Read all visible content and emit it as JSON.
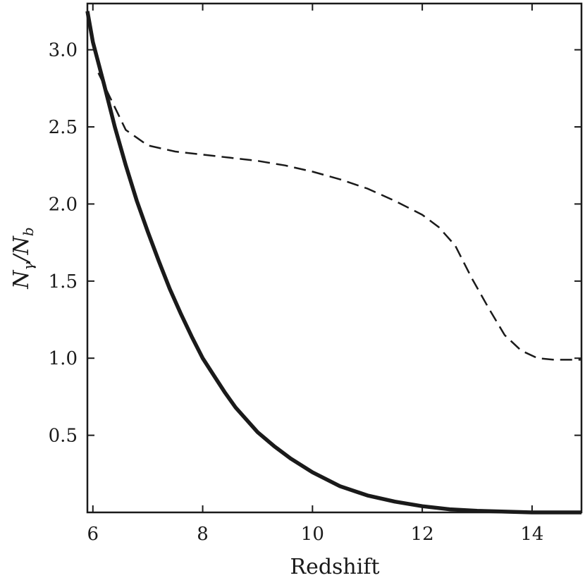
{
  "chart_data": {
    "type": "line",
    "xlabel": "Redshift",
    "ylabel": {
      "numerator": "N",
      "numerator_sub": "γ",
      "slash": "/",
      "denominator": "N",
      "denominator_sub": "b"
    },
    "xlim": [
      5.9,
      14.9
    ],
    "ylim": [
      0.0,
      3.3
    ],
    "xticks": [
      6,
      8,
      10,
      12,
      14
    ],
    "xtick_labels": [
      "6",
      "8",
      "10",
      "12",
      "14"
    ],
    "yticks": [
      0.5,
      1.0,
      1.5,
      2.0,
      2.5,
      3.0
    ],
    "ytick_labels": [
      "0.5",
      "1.0",
      "1.5",
      "2.0",
      "2.5",
      "3.0"
    ],
    "grid": false,
    "series": [
      {
        "style": "solid",
        "color": "#1a1a1a",
        "x": [
          5.9,
          6.0,
          6.2,
          6.4,
          6.6,
          6.8,
          7.0,
          7.2,
          7.4,
          7.6,
          7.8,
          8.0,
          8.2,
          8.4,
          8.6,
          8.8,
          9.0,
          9.3,
          9.6,
          10.0,
          10.5,
          11.0,
          11.5,
          12.0,
          12.5,
          13.0,
          13.5,
          14.0,
          14.9
        ],
        "y": [
          3.25,
          3.05,
          2.78,
          2.5,
          2.25,
          2.02,
          1.82,
          1.63,
          1.45,
          1.29,
          1.14,
          1.0,
          0.89,
          0.78,
          0.68,
          0.6,
          0.52,
          0.43,
          0.35,
          0.26,
          0.17,
          0.11,
          0.07,
          0.04,
          0.02,
          0.01,
          0.005,
          0.0,
          0.0
        ]
      },
      {
        "style": "dashed",
        "color": "#1a1a1a",
        "x": [
          6.1,
          6.3,
          6.6,
          7.0,
          7.5,
          8.0,
          8.5,
          9.0,
          9.5,
          10.0,
          10.5,
          11.0,
          11.5,
          12.0,
          12.3,
          12.6,
          12.9,
          13.2,
          13.5,
          13.8,
          14.1,
          14.4,
          14.9
        ],
        "y": [
          2.85,
          2.7,
          2.48,
          2.38,
          2.34,
          2.32,
          2.3,
          2.28,
          2.25,
          2.21,
          2.16,
          2.1,
          2.02,
          1.93,
          1.85,
          1.73,
          1.52,
          1.33,
          1.15,
          1.05,
          1.0,
          0.99,
          0.99
        ]
      }
    ]
  }
}
